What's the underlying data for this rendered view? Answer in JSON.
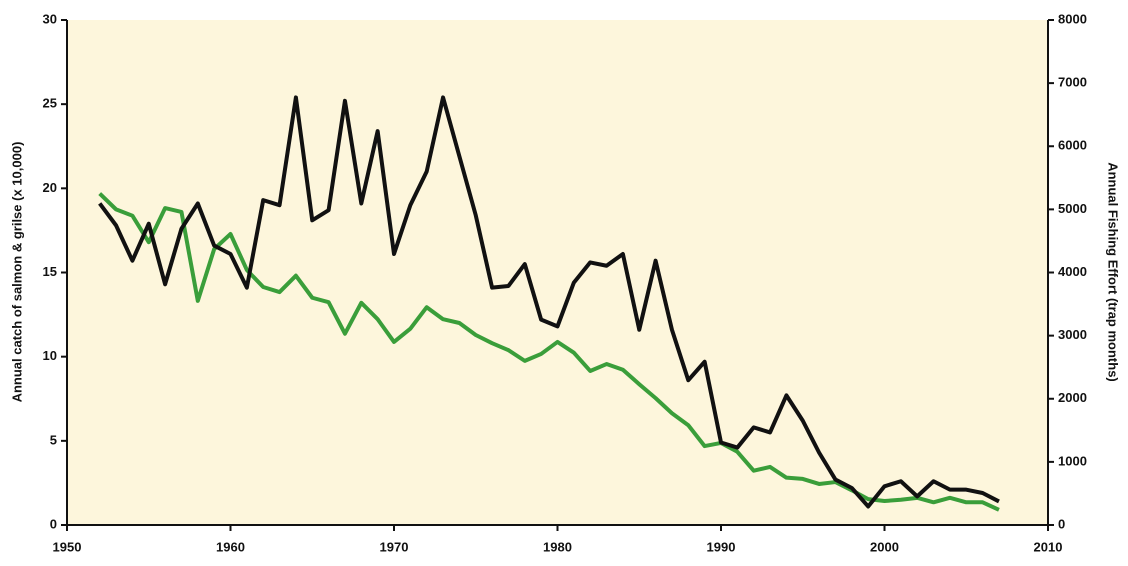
{
  "chart_data": {
    "type": "line",
    "x": [
      1952,
      1953,
      1954,
      1955,
      1956,
      1957,
      1958,
      1959,
      1960,
      1961,
      1962,
      1963,
      1964,
      1965,
      1966,
      1967,
      1968,
      1969,
      1970,
      1971,
      1972,
      1973,
      1974,
      1975,
      1976,
      1977,
      1978,
      1979,
      1980,
      1981,
      1982,
      1983,
      1984,
      1985,
      1986,
      1987,
      1988,
      1989,
      1990,
      1991,
      1992,
      1993,
      1994,
      1995,
      1996,
      1997,
      1998,
      1999,
      2000,
      2001,
      2002,
      2003,
      2004,
      2005,
      2006,
      2007
    ],
    "series": [
      {
        "color": "#111111",
        "values": [
          19.1,
          17.8,
          15.7,
          17.9,
          14.3,
          17.6,
          19.1,
          16.6,
          16.1,
          14.1,
          19.3,
          19.0,
          25.4,
          18.1,
          18.7,
          25.2,
          19.1,
          23.4,
          16.1,
          19.0,
          21.0,
          25.4,
          21.9,
          18.4,
          14.1,
          14.2,
          15.5,
          12.2,
          11.8,
          14.4,
          15.6,
          15.4,
          16.1,
          11.6,
          15.7,
          11.6,
          8.6,
          9.7,
          4.9,
          4.6,
          5.8,
          5.5,
          7.7,
          6.2,
          4.3,
          2.7,
          2.2,
          1.1,
          2.3,
          2.6,
          1.7,
          2.6,
          2.1,
          2.1,
          1.9,
          1.4
        ]
      },
      {
        "color": "#3a9e3a",
        "axis": "y2",
        "values": [
          5250,
          5000,
          4900,
          4480,
          5020,
          4960,
          3550,
          4370,
          4610,
          4040,
          3770,
          3690,
          3950,
          3600,
          3530,
          3030,
          3520,
          3260,
          2900,
          3110,
          3450,
          3260,
          3200,
          3010,
          2880,
          2770,
          2600,
          2710,
          2900,
          2730,
          2440,
          2550,
          2460,
          2230,
          2010,
          1770,
          1580,
          1250,
          1300,
          1160,
          860,
          920,
          750,
          730,
          650,
          680,
          550,
          410,
          380,
          400,
          430,
          360,
          430,
          360,
          360,
          240
        ]
      }
    ],
    "ylabel": "Annual catch of salmon & grilse (x 10,000)",
    "y2label": "Annual Fishing Effort (trap months)",
    "xlim": [
      1950,
      2010
    ],
    "xticks": [
      1950,
      1960,
      1970,
      1980,
      1990,
      2000,
      2010
    ],
    "ylim": [
      0,
      30
    ],
    "yticks": [
      0,
      5,
      10,
      15,
      20,
      25,
      30
    ],
    "y2lim": [
      0,
      8000
    ],
    "y2ticks": [
      0,
      1000,
      2000,
      3000,
      4000,
      5000,
      6000,
      7000,
      8000
    ],
    "background": "#fdf6dc"
  }
}
